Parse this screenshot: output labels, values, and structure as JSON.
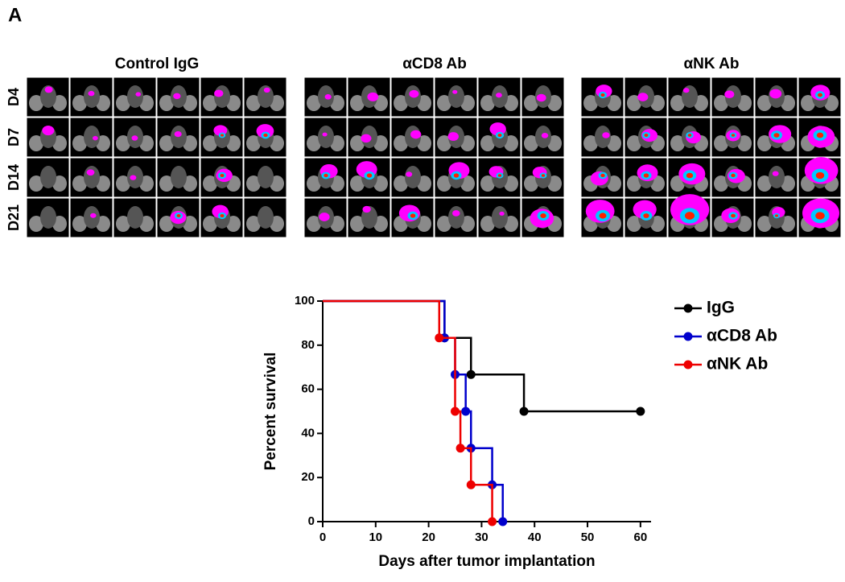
{
  "panel_label": "A",
  "image_panels": {
    "titles": [
      "Control IgG",
      "αCD8 Ab",
      "αNK Ab"
    ],
    "rows": [
      "D4",
      "D7",
      "D14",
      "D21"
    ]
  },
  "chart_data": {
    "type": "survival",
    "xlabel": "Days after tumor implantation",
    "ylabel": "Percent survival",
    "xlim": [
      0,
      62
    ],
    "xticks": [
      0,
      10,
      20,
      30,
      40,
      50,
      60
    ],
    "ylim": [
      0,
      100
    ],
    "yticks": [
      0,
      20,
      40,
      60,
      80,
      100
    ],
    "series": [
      {
        "name": "IgG",
        "color": "#000000",
        "x": [
          0,
          23,
          28,
          38,
          60
        ],
        "values": [
          100,
          83.3,
          66.7,
          50,
          50
        ]
      },
      {
        "name": "αCD8 Ab",
        "color": "#0000cc",
        "x": [
          0,
          23,
          25,
          27,
          28,
          32,
          34
        ],
        "values": [
          100,
          83.3,
          66.7,
          50,
          33.3,
          16.7,
          0
        ]
      },
      {
        "name": "αNK Ab",
        "color": "#ee0000",
        "x": [
          0,
          22,
          25,
          26,
          28,
          32
        ],
        "values": [
          100,
          83.3,
          50,
          33.3,
          16.7,
          0
        ]
      }
    ]
  }
}
